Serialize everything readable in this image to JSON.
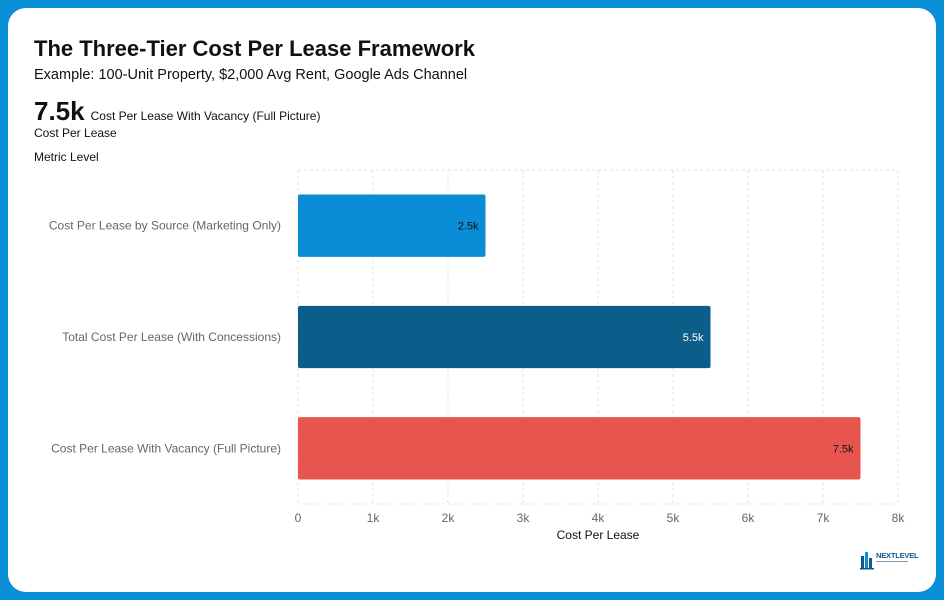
{
  "header": {
    "title": "The Three-Tier Cost Per Lease Framework",
    "subtitle": "Example: 100-Unit Property, $2,000 Avg Rent, Google Ads Channel"
  },
  "kpi": {
    "value": "7.5k",
    "label": "Cost Per Lease With Vacancy (Full Picture)",
    "caption": "Cost Per Lease"
  },
  "logo": {
    "text": "NEXTLEVEL",
    "mark": "NL"
  },
  "chart_data": {
    "type": "bar",
    "orientation": "horizontal",
    "categories": [
      "Cost Per Lease by Source (Marketing Only)",
      "Total Cost Per Lease (With Concessions)",
      "Cost Per Lease With Vacancy (Full Picture)"
    ],
    "values": [
      2500,
      5500,
      7500
    ],
    "data_labels": [
      "2.5k",
      "5.5k",
      "7.5k"
    ],
    "colors": [
      "#0a8dd6",
      "#0b5d8a",
      "#e8554f"
    ],
    "label_colors": [
      "#111111",
      "#ffffff",
      "#111111"
    ],
    "xlabel": "Cost Per Lease",
    "ylabel": "Metric Level",
    "xlim": [
      0,
      8000
    ],
    "xticks": [
      0,
      1000,
      2000,
      3000,
      4000,
      5000,
      6000,
      7000,
      8000
    ],
    "xtick_labels": [
      "0",
      "1k",
      "2k",
      "3k",
      "4k",
      "5k",
      "6k",
      "7k",
      "8k"
    ],
    "grid": true
  }
}
